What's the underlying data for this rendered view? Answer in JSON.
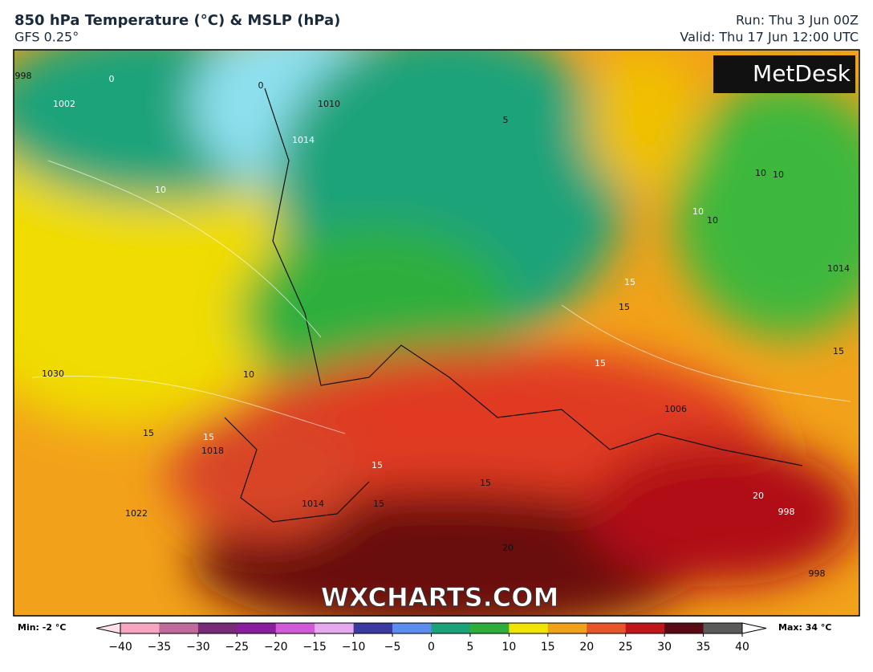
{
  "header": {
    "title": "850 hPa Temperature (°C) & MSLP (hPa)",
    "model": "GFS 0.25°",
    "run": "Run: Thu 3 Jun 00Z",
    "valid": "Valid: Thu 17 Jun 12:00 UTC"
  },
  "logo": "MetDesk",
  "watermark": "WXCHARTS.COM",
  "map_labels": [
    "0",
    "0",
    "1010",
    "1014",
    "998",
    "5",
    "10",
    "10",
    "10",
    "10",
    "10",
    "1014",
    "15",
    "15",
    "15",
    "15",
    "1030",
    "15",
    "15",
    "1018",
    "1014",
    "15",
    "15",
    "20",
    "998",
    "998",
    "1022",
    "20",
    "10",
    "1006",
    "1002",
    "15"
  ],
  "legend": {
    "min_label": "Min: -2 °C",
    "max_label": "Max: 34 °C",
    "colors": [
      "#f7a5c0",
      "#c06b9c",
      "#7a2a78",
      "#8a1e9e",
      "#d25ad8",
      "#e6a9f0",
      "#3a3aa0",
      "#5b8ef0",
      "#1aa37a",
      "#2eaf3c",
      "#f0e400",
      "#f2a21a",
      "#e8552a",
      "#c0161a",
      "#5a0a14",
      "#5a5a5a"
    ],
    "ticks": [
      {
        "value": -40,
        "label": "−40"
      },
      {
        "value": -35,
        "label": "−35"
      },
      {
        "value": -30,
        "label": "−30"
      },
      {
        "value": -25,
        "label": "−25"
      },
      {
        "value": -20,
        "label": "−20"
      },
      {
        "value": -15,
        "label": "−15"
      },
      {
        "value": -10,
        "label": "−10"
      },
      {
        "value": -5,
        "label": "−5"
      },
      0,
      5,
      10,
      15,
      20,
      25,
      30,
      35,
      40
    ],
    "lim": [
      -40,
      40
    ]
  }
}
